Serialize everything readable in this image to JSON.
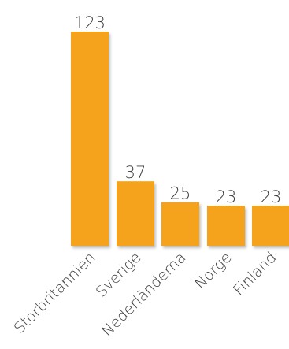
{
  "chart_data": {
    "type": "bar",
    "title": "",
    "xlabel": "",
    "ylabel": "",
    "categories": [
      "Storbritannien",
      "Sverige",
      "Nederländerna",
      "Norge",
      "Finland"
    ],
    "values": [
      123,
      37,
      25,
      23,
      23
    ],
    "ylim": [
      0,
      123
    ],
    "grid": false,
    "legend": "none",
    "data_labels": true,
    "colors": {
      "bar": "#F5A21E",
      "bar_shadow": "#D98C12",
      "text": "#3d3d3d",
      "background": "#ffffff"
    }
  }
}
